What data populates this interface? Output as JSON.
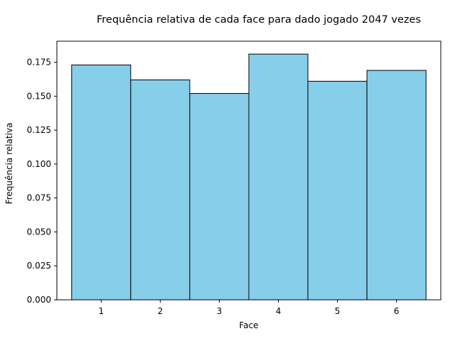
{
  "chart_data": {
    "type": "bar",
    "title": "Frequência relativa de cada face para dado jogado 2047 vezes",
    "xlabel": "Face",
    "ylabel": "Frequência relativa",
    "categories": [
      "1",
      "2",
      "3",
      "4",
      "5",
      "6"
    ],
    "values": [
      0.173,
      0.162,
      0.152,
      0.181,
      0.161,
      0.169
    ],
    "ylim": [
      0,
      0.1905
    ],
    "xlim": [
      0.25,
      6.75
    ],
    "yticks": [
      0.0,
      0.025,
      0.05,
      0.075,
      0.1,
      0.125,
      0.15,
      0.175
    ],
    "ytick_labels": [
      "0.000",
      "0.025",
      "0.050",
      "0.075",
      "0.100",
      "0.125",
      "0.150",
      "0.175"
    ],
    "bar_color": "#87CEEB",
    "edge_color": "#000000",
    "grid": false,
    "legend": "none"
  }
}
